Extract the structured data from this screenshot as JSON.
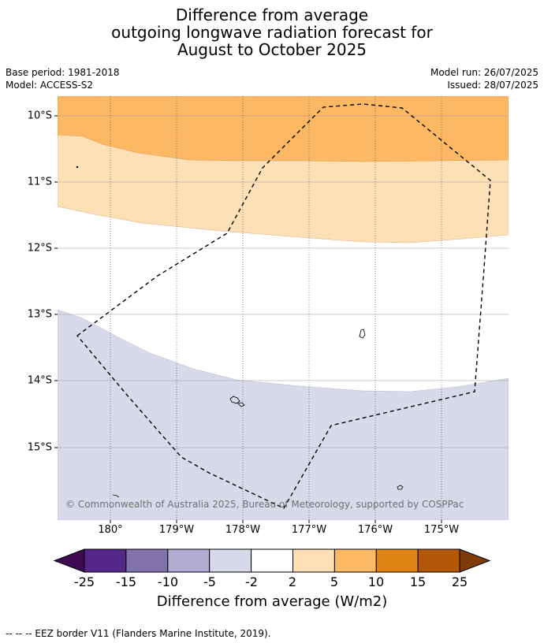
{
  "title": {
    "line1": "Difference from average",
    "line2": "outgoing longwave radiation forecast for",
    "line3": "August to October 2025"
  },
  "meta": {
    "base_period": "Base period: 1981-2018",
    "model": "Model: ACCESS-S2",
    "model_run": "Model run: 26/07/2025",
    "issued": "Issued: 28/07/2025"
  },
  "map": {
    "lat_labels": [
      "10°S",
      "11°S",
      "12°S",
      "13°S",
      "14°S",
      "15°S"
    ],
    "lon_labels": [
      "180°",
      "179°W",
      "178°W",
      "177°W",
      "176°W",
      "175°W"
    ],
    "copyright": "© Commonwealth of Australia 2025, Bureau of Meteorology, supported by COSPPac",
    "colors": {
      "band_5_10": "#fdb864",
      "band_2_5": "#fde0b6",
      "band_neutral": "#ffffff",
      "band_neg2_neg5": "#d8daea"
    }
  },
  "colorbar": {
    "ticks": [
      "-25",
      "-15",
      "-10",
      "-5",
      "-2",
      "2",
      "5",
      "10",
      "15",
      "25"
    ],
    "colors": [
      "#3f0a52",
      "#542788",
      "#8073ac",
      "#b2abd2",
      "#d8daeb",
      "#ffffff",
      "#fee0b6",
      "#fdb863",
      "#e08214",
      "#b35806",
      "#7f3b08"
    ],
    "title": "Difference from average (W/m2)"
  },
  "footnote": "--  --  -- EEZ border V11 (Flanders Marine Institute, 2019)."
}
